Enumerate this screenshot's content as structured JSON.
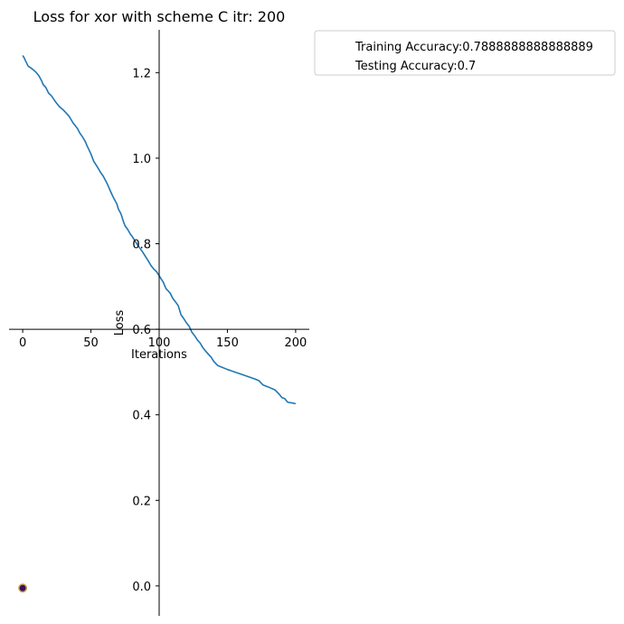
{
  "chart_data": {
    "type": "line",
    "title": "Loss for xor with scheme C itr: 200",
    "xlabel": "Iterations",
    "ylabel": "Loss",
    "xlim": [
      -10,
      210
    ],
    "ylim": [
      -0.07,
      1.3
    ],
    "xticks": [
      0,
      50,
      100,
      150,
      200
    ],
    "yticks": [
      0.0,
      0.2,
      0.4,
      0.6,
      0.8,
      1.0,
      1.2
    ],
    "xtick_labels": [
      "0",
      "50",
      "100",
      "150",
      "200"
    ],
    "ytick_labels": [
      "0.0",
      "0.2",
      "0.4",
      "0.6",
      "0.8",
      "1.0",
      "1.2"
    ],
    "spines": "centered",
    "grid": false,
    "legend": {
      "placement": "upper-right-outside",
      "entries": [
        "Training Accuracy:0.7888888888888889",
        "Testing Accuracy:0.7"
      ]
    },
    "series": [
      {
        "color": "#1f77b4",
        "x": [
          0,
          1,
          2,
          4,
          6,
          8,
          10,
          12,
          14,
          15,
          17,
          19,
          21,
          24,
          27,
          30,
          34,
          37,
          40,
          42,
          44,
          46,
          47,
          50,
          52,
          55,
          57,
          59,
          60,
          62,
          64,
          66,
          67,
          69,
          70,
          72,
          74,
          75,
          77,
          79,
          80,
          82,
          84,
          86,
          88,
          90,
          92,
          94,
          96,
          98,
          99,
          101,
          103,
          105,
          108,
          110,
          112,
          114,
          116,
          118,
          120,
          122,
          124,
          126,
          128,
          130,
          132,
          134,
          136,
          138,
          140,
          143,
          150,
          160,
          170,
          173,
          176,
          180,
          185,
          188,
          190,
          192,
          194,
          195,
          197,
          200
        ],
        "y": [
          1.24,
          1.235,
          1.228,
          1.215,
          1.211,
          1.206,
          1.2,
          1.192,
          1.18,
          1.172,
          1.165,
          1.152,
          1.146,
          1.132,
          1.12,
          1.112,
          1.098,
          1.082,
          1.07,
          1.058,
          1.049,
          1.038,
          1.03,
          1.01,
          0.993,
          0.978,
          0.967,
          0.958,
          0.952,
          0.94,
          0.925,
          0.911,
          0.905,
          0.893,
          0.882,
          0.87,
          0.85,
          0.842,
          0.833,
          0.822,
          0.818,
          0.808,
          0.798,
          0.789,
          0.78,
          0.77,
          0.76,
          0.749,
          0.741,
          0.735,
          0.73,
          0.72,
          0.71,
          0.695,
          0.685,
          0.672,
          0.664,
          0.655,
          0.634,
          0.625,
          0.615,
          0.607,
          0.593,
          0.585,
          0.575,
          0.568,
          0.557,
          0.549,
          0.542,
          0.535,
          0.525,
          0.515,
          0.506,
          0.495,
          0.484,
          0.48,
          0.47,
          0.465,
          0.458,
          0.448,
          0.44,
          0.438,
          0.43,
          0.429,
          0.428,
          0.426
        ]
      }
    ],
    "markers": [
      {
        "x": 0,
        "y": -0.005,
        "fill": "#3b0f5e",
        "stroke": "#c8a34a"
      }
    ]
  }
}
